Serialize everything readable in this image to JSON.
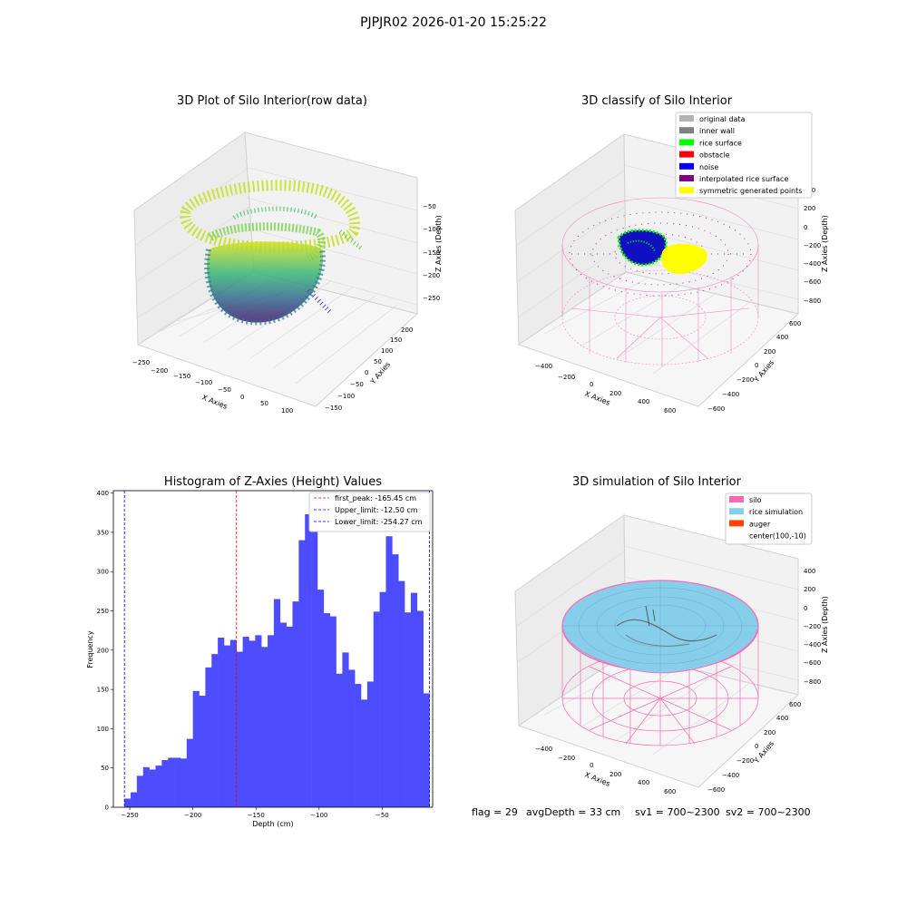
{
  "suptitle": "PJPJR02 2026-01-20 15:25:22",
  "chart_data": [
    {
      "type": "scatter",
      "title": "3D Plot of Silo Interior(row data)",
      "xlabel": "X Axies",
      "ylabel": "Y Axies",
      "zlabel": "Z Axies (Depth)",
      "x_ticks": [
        "−250",
        "−200",
        "−150",
        "−100",
        "−50",
        "0",
        "50",
        "100"
      ],
      "y_ticks": [
        "−150",
        "−100",
        "−50",
        "0",
        "50",
        "100",
        "150",
        "200"
      ],
      "z_ticks": [
        "−50",
        "−100",
        "−150",
        "−200",
        "−250"
      ]
    },
    {
      "type": "scatter",
      "title": "3D classify of Silo Interior",
      "xlabel": "X Axies",
      "ylabel": "Y Axies",
      "zlabel": "Z Axies (Depth)",
      "x_ticks": [
        "−400",
        "−200",
        "0",
        "200",
        "400",
        "600"
      ],
      "y_ticks": [
        "−600",
        "−400",
        "−200",
        "0",
        "200",
        "400",
        "600"
      ],
      "z_ticks": [
        "400",
        "200",
        "0",
        "−200",
        "−400",
        "−600",
        "−800"
      ],
      "legend": [
        {
          "label": "original data",
          "color": "#b3b3b3"
        },
        {
          "label": "inner wall",
          "color": "#808080"
        },
        {
          "label": "rice surface",
          "color": "#00ff00"
        },
        {
          "label": "obstacle",
          "color": "#ff0000"
        },
        {
          "label": "noise",
          "color": "#0000ff"
        },
        {
          "label": "interpolated rice surface",
          "color": "#800080"
        },
        {
          "label": "symmetric generated points",
          "color": "#ffff00"
        }
      ]
    },
    {
      "type": "bar",
      "title": "Histogram of Z-Axies (Height) Values",
      "xlabel": "Depth (cm)",
      "ylabel": "Frequency",
      "xlim": [
        -263,
        -10
      ],
      "ylim": [
        0,
        403
      ],
      "x_ticks": [
        -250,
        -200,
        -150,
        -100,
        -50
      ],
      "y_ticks": [
        0,
        50,
        100,
        150,
        200,
        250,
        300,
        350,
        400
      ],
      "bin_start": -254.27,
      "bin_end": -12.5,
      "values": [
        11,
        19,
        40,
        51,
        48,
        53,
        60,
        63,
        63,
        62,
        87,
        148,
        142,
        178,
        195,
        216,
        206,
        213,
        198,
        217,
        212,
        219,
        204,
        219,
        265,
        235,
        230,
        262,
        340,
        373,
        384,
        277,
        247,
        243,
        170,
        197,
        175,
        157,
        137,
        160,
        249,
        274,
        345,
        322,
        288,
        248,
        273,
        250,
        145
      ],
      "bar_color": "#4d4dff",
      "lines": [
        {
          "label": "first_peak: -165.45 cm",
          "x": -165.45,
          "color": "#ff0000"
        },
        {
          "label": "Upper_limit: -12.50 cm",
          "x": -12.5,
          "color": "#0000ff"
        },
        {
          "label": "Lower_limit: -254.27 cm",
          "x": -254.27,
          "color": "#0000ff"
        }
      ],
      "legend_position": "top-right"
    },
    {
      "type": "scatter",
      "title": "3D simulation of Silo Interior",
      "xlabel": "X Axies",
      "ylabel": "Y Axies",
      "zlabel": "Z Axies (Depth)",
      "x_ticks": [
        "−400",
        "−200",
        "0",
        "200",
        "400",
        "600"
      ],
      "y_ticks": [
        "−600",
        "−400",
        "−200",
        "0",
        "200",
        "400",
        "600"
      ],
      "z_ticks": [
        "400",
        "200",
        "0",
        "−200",
        "−400",
        "−600",
        "−800"
      ],
      "legend": [
        {
          "label": "silo",
          "color": "#ff69b4"
        },
        {
          "label": "rice simulation",
          "color": "#87ceeb"
        },
        {
          "label": "auger",
          "color": "#ff4500"
        },
        {
          "label": "center(100,-10)",
          "color": "#ffffff"
        }
      ]
    }
  ],
  "footer": {
    "flag": "flag = 29",
    "avg_depth": "avgDepth = 33 cm",
    "sv1": "sv1 = 700~2300",
    "sv2": "sv2 = 700~2300"
  }
}
